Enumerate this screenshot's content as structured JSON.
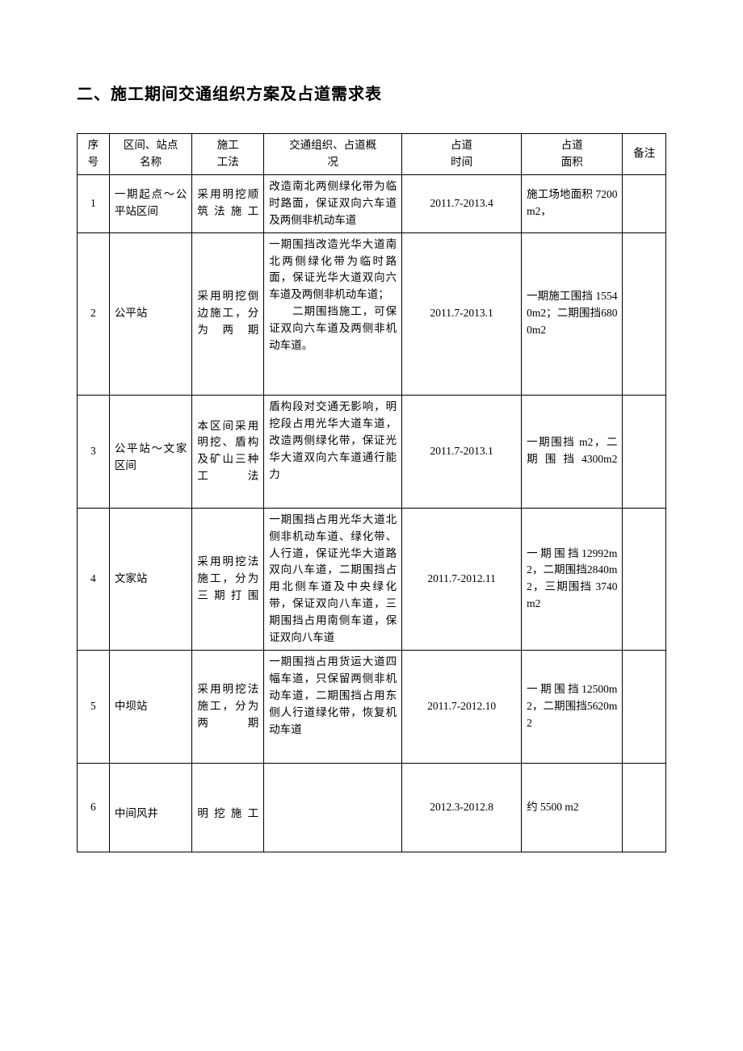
{
  "title": "二、施工期间交通组织方案及占道需求表",
  "headers": {
    "seq": "序号",
    "name": "区间、站点\n名称",
    "method": "施工\n工法",
    "traffic": "交通组织、占道概\n况",
    "time": "占道\n时间",
    "area": "占道\n面积",
    "note": "备注"
  },
  "rows": [
    {
      "seq": "1",
      "name": "一期起点～公平站区间",
      "method": "采用明挖顺筑法施工",
      "traffic": "改造南北两侧绿化带为临时路面，保证双向六车道及两侧非机动车道",
      "time": "2011.7-2013.4",
      "area": "施工场地面积 7200 m2，",
      "note": ""
    },
    {
      "seq": "2",
      "name": "公平站",
      "method": "采用明挖倒边施工，分为两期",
      "traffic": "一期围挡改造光华大道南北两侧绿化带为临时路面，保证光华大道双向六车道及两侧非机动车道；\n　　二期围挡施工，可保证双向六车道及两侧非机动车道。",
      "time": "2011.7-2013.1",
      "area": "一期施工围挡 15540m2；二期围挡6800m2",
      "note": ""
    },
    {
      "seq": "3",
      "name": "公平站～文家区间",
      "method": "本区间采用明挖、盾构及矿山三种工法",
      "traffic": "盾构段对交通无影响，明挖段占用光华大道车道，改造两侧绿化带，保证光华大道双向六车道通行能力",
      "time": "2011.7-2013.1",
      "area": "一期围挡 m2，二期围挡4300m2",
      "note": ""
    },
    {
      "seq": "4",
      "name": "文家站",
      "method": "采用明挖法施工，分为三期打围",
      "traffic": "一期围挡占用光华大道北侧非机动车道、绿化带、人行道，保证光华大道路双向八车道，二期围挡占用北侧车道及中央绿化带，保证双向八车道，三期围挡占用南侧车道，保证双向八车道",
      "time": "2011.7-2012.11",
      "area": "一期围挡12992m2，二期围挡2840m2，三期围挡 3740m2",
      "note": ""
    },
    {
      "seq": "5",
      "name": "中坝站",
      "method": "采用明挖法施工，分为两期",
      "traffic": "一期围挡占用货运大道四幅车道，只保留两侧非机动车道，二期围挡占用东侧人行道绿化带，恢复机动车道",
      "time": "2011.7-2012.10",
      "area": "一期围挡12500m2，二期围挡5620m2",
      "note": ""
    },
    {
      "seq": "6",
      "name": "中间风井",
      "method": "明挖施工",
      "traffic": "",
      "time": "2012.3-2012.8",
      "area": "约 5500 m2",
      "note": ""
    }
  ],
  "styles": {
    "body_bg": "#ffffff",
    "border_color": "#000000",
    "text_color": "#000000",
    "title_fontsize": 20,
    "body_fontsize": 13.5
  }
}
